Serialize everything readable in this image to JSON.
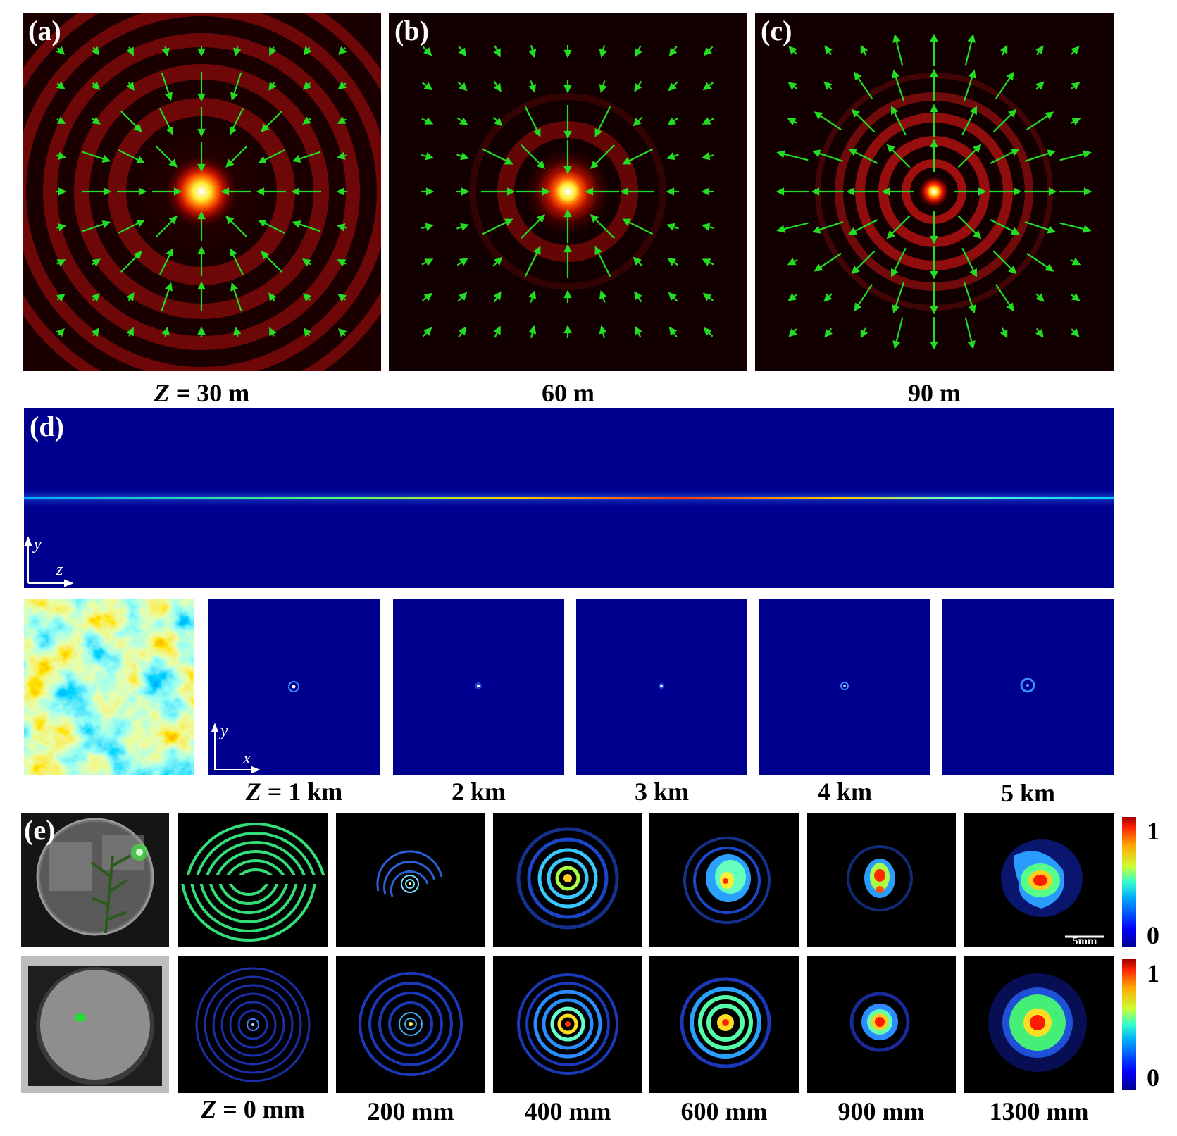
{
  "figure": {
    "row1": {
      "panels": [
        {
          "label": "(a)",
          "caption_z": "Z",
          "caption_rest": " = 30 m"
        },
        {
          "label": "(b)",
          "caption_z": "",
          "caption_rest": "60 m"
        },
        {
          "label": "(c)",
          "caption_z": "",
          "caption_rest": "90 m"
        }
      ]
    },
    "row2": {
      "label": "(d)",
      "axis_y": "y",
      "axis_z": "z"
    },
    "row3": {
      "axis_y": "y",
      "axis_x": "x",
      "captions": [
        {
          "z": "Z",
          "rest": " = 1 km"
        },
        {
          "z": "",
          "rest": "2 km"
        },
        {
          "z": "",
          "rest": "3 km"
        },
        {
          "z": "",
          "rest": "4 km"
        },
        {
          "z": "",
          "rest": "5 km"
        }
      ]
    },
    "row4": {
      "label": "(e)",
      "scale_bar": "5mm",
      "colorbar_max": "1",
      "colorbar_min": "0",
      "colorbar2_max": "1",
      "colorbar2_min": "0",
      "captions": [
        {
          "z": "Z",
          "rest": " = 0 mm"
        },
        {
          "z": "",
          "rest": "200 mm"
        },
        {
          "z": "",
          "rest": "400 mm"
        },
        {
          "z": "",
          "rest": "600 mm"
        },
        {
          "z": "",
          "rest": "900 mm"
        },
        {
          "z": "",
          "rest": "1300 mm"
        }
      ]
    }
  },
  "colors": {
    "dark_bg": "#1a0000",
    "arrow_green": "#22dd22",
    "blue_bg": "#00008f",
    "black": "#000000"
  }
}
